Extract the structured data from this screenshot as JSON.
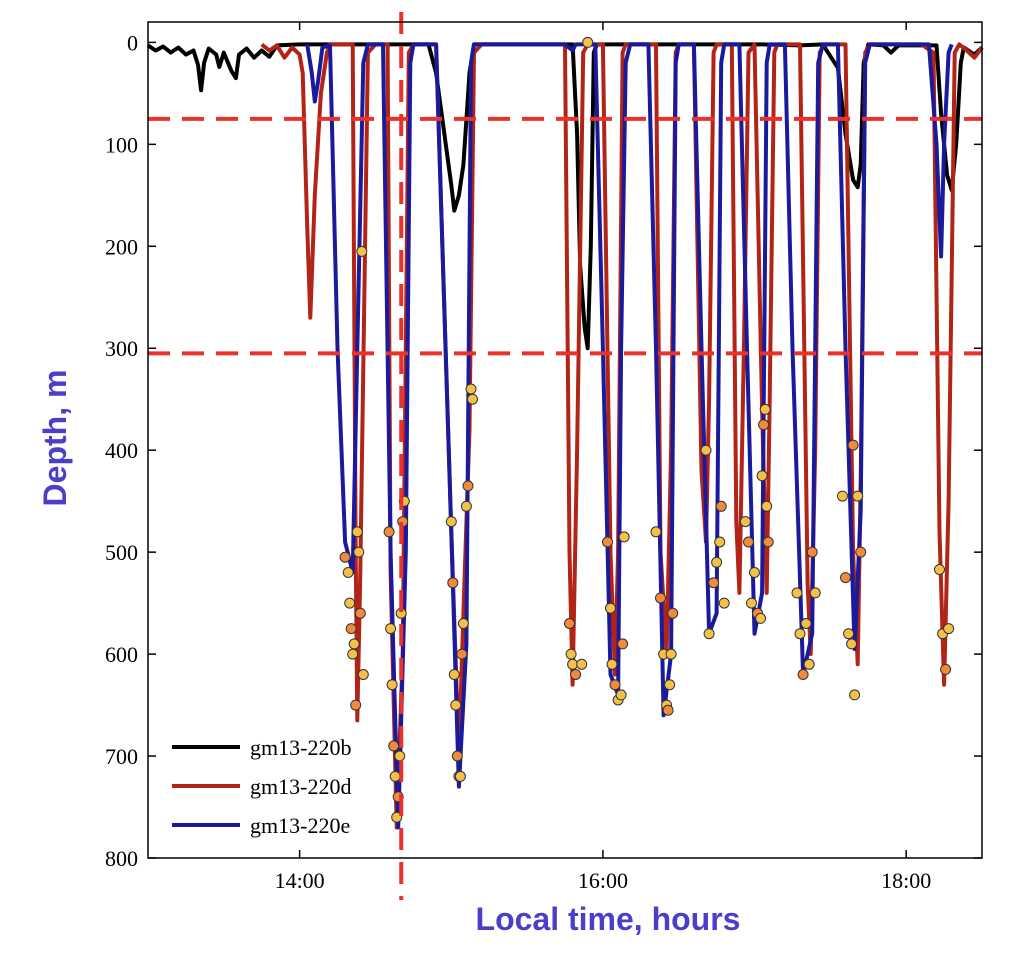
{
  "chart_data": {
    "type": "line",
    "title": "",
    "xlabel": "Local time, hours",
    "ylabel": "Depth, m",
    "xlim": [
      13.0,
      18.5
    ],
    "ylim": [
      800,
      -20
    ],
    "y_inverted": true,
    "xticks": [
      {
        "value": 14.0,
        "label": "14:00"
      },
      {
        "value": 16.0,
        "label": "16:00"
      },
      {
        "value": 18.0,
        "label": "18:00"
      }
    ],
    "yticks": [
      {
        "value": 0,
        "label": "0"
      },
      {
        "value": 100,
        "label": "100"
      },
      {
        "value": 200,
        "label": "200"
      },
      {
        "value": 300,
        "label": "300"
      },
      {
        "value": 400,
        "label": "400"
      },
      {
        "value": 500,
        "label": "500"
      },
      {
        "value": 600,
        "label": "600"
      },
      {
        "value": 700,
        "label": "700"
      },
      {
        "value": 800,
        "label": "800"
      }
    ],
    "grid": false,
    "legend_position": "bottom-left",
    "colors": {
      "axis_title": "#4a3fc9",
      "reference_line": "#e8322b",
      "marker_fill": "#f5c04a",
      "marker_fill_alt": "#f08a3c",
      "marker_stroke": "#333333"
    },
    "reference_lines": {
      "horizontal_depths": [
        75,
        305
      ],
      "vertical_time": 14.67
    },
    "series": [
      {
        "name": "gm13-220b",
        "color": "#000000",
        "points": [
          [
            13.0,
            3
          ],
          [
            13.05,
            8
          ],
          [
            13.1,
            4
          ],
          [
            13.15,
            10
          ],
          [
            13.2,
            5
          ],
          [
            13.25,
            12
          ],
          [
            13.3,
            8
          ],
          [
            13.33,
            22
          ],
          [
            13.35,
            47
          ],
          [
            13.37,
            20
          ],
          [
            13.4,
            6
          ],
          [
            13.45,
            12
          ],
          [
            13.47,
            24
          ],
          [
            13.5,
            10
          ],
          [
            13.55,
            28
          ],
          [
            13.58,
            35
          ],
          [
            13.6,
            12
          ],
          [
            13.65,
            6
          ],
          [
            13.7,
            15
          ],
          [
            13.75,
            8
          ],
          [
            13.8,
            14
          ],
          [
            13.85,
            3
          ],
          [
            14.0,
            2
          ],
          [
            14.5,
            2
          ],
          [
            14.85,
            2
          ],
          [
            14.9,
            30
          ],
          [
            15.0,
            140
          ],
          [
            15.02,
            165
          ],
          [
            15.05,
            150
          ],
          [
            15.08,
            120
          ],
          [
            15.12,
            30
          ],
          [
            15.15,
            2
          ],
          [
            15.8,
            2
          ],
          [
            15.83,
            90
          ],
          [
            15.85,
            220
          ],
          [
            15.88,
            280
          ],
          [
            15.9,
            300
          ],
          [
            15.92,
            200
          ],
          [
            15.94,
            10
          ],
          [
            15.96,
            2
          ],
          [
            17.05,
            2
          ],
          [
            17.3,
            3
          ],
          [
            17.45,
            2
          ],
          [
            17.55,
            25
          ],
          [
            17.6,
            90
          ],
          [
            17.65,
            135
          ],
          [
            17.68,
            142
          ],
          [
            17.7,
            120
          ],
          [
            17.72,
            20
          ],
          [
            17.75,
            2
          ],
          [
            17.85,
            3
          ],
          [
            17.9,
            10
          ],
          [
            17.95,
            3
          ],
          [
            18.2,
            3
          ],
          [
            18.23,
            70
          ],
          [
            18.27,
            130
          ],
          [
            18.3,
            145
          ],
          [
            18.33,
            100
          ],
          [
            18.36,
            20
          ],
          [
            18.38,
            5
          ],
          [
            18.45,
            12
          ],
          [
            18.5,
            5
          ]
        ]
      },
      {
        "name": "gm13-220d",
        "color": "#b22418",
        "points": [
          [
            13.75,
            2
          ],
          [
            13.8,
            8
          ],
          [
            13.85,
            3
          ],
          [
            13.9,
            15
          ],
          [
            13.95,
            5
          ],
          [
            14.0,
            12
          ],
          [
            14.02,
            30
          ],
          [
            14.05,
            180
          ],
          [
            14.07,
            270
          ],
          [
            14.1,
            150
          ],
          [
            14.14,
            50
          ],
          [
            14.18,
            10
          ],
          [
            14.2,
            2
          ],
          [
            14.35,
            2
          ],
          [
            14.37,
            500
          ],
          [
            14.38,
            665
          ],
          [
            14.4,
            520
          ],
          [
            14.45,
            10
          ],
          [
            14.5,
            2
          ],
          [
            14.58,
            2
          ],
          [
            14.6,
            520
          ],
          [
            14.64,
            770
          ],
          [
            14.68,
            600
          ],
          [
            14.72,
            10
          ],
          [
            14.75,
            2
          ],
          [
            14.9,
            2
          ],
          [
            15.0,
            480
          ],
          [
            15.05,
            700
          ],
          [
            15.08,
            560
          ],
          [
            15.12,
            380
          ],
          [
            15.15,
            10
          ],
          [
            15.2,
            2
          ],
          [
            15.75,
            2
          ],
          [
            15.78,
            500
          ],
          [
            15.8,
            630
          ],
          [
            15.83,
            400
          ],
          [
            15.87,
            10
          ],
          [
            15.9,
            2
          ],
          [
            16.0,
            2
          ],
          [
            16.05,
            500
          ],
          [
            16.08,
            620
          ],
          [
            16.1,
            500
          ],
          [
            16.13,
            10
          ],
          [
            16.15,
            2
          ],
          [
            16.35,
            2
          ],
          [
            16.38,
            500
          ],
          [
            16.42,
            600
          ],
          [
            16.45,
            400
          ],
          [
            16.48,
            10
          ],
          [
            16.5,
            2
          ],
          [
            16.6,
            2
          ],
          [
            16.65,
            420
          ],
          [
            16.68,
            490
          ],
          [
            16.7,
            350
          ],
          [
            16.73,
            10
          ],
          [
            16.75,
            2
          ],
          [
            16.85,
            2
          ],
          [
            16.88,
            470
          ],
          [
            16.9,
            540
          ],
          [
            16.93,
            300
          ],
          [
            16.96,
            10
          ],
          [
            17.0,
            2
          ],
          [
            17.05,
            360
          ],
          [
            17.08,
            540
          ],
          [
            17.1,
            350
          ],
          [
            17.13,
            10
          ],
          [
            17.15,
            2
          ],
          [
            17.3,
            2
          ],
          [
            17.35,
            530
          ],
          [
            17.37,
            600
          ],
          [
            17.4,
            400
          ],
          [
            17.43,
            10
          ],
          [
            17.46,
            2
          ],
          [
            17.6,
            2
          ],
          [
            17.65,
            500
          ],
          [
            17.68,
            610
          ],
          [
            17.7,
            430
          ],
          [
            17.73,
            10
          ],
          [
            17.76,
            2
          ],
          [
            18.1,
            2
          ],
          [
            18.18,
            10
          ],
          [
            18.22,
            480
          ],
          [
            18.25,
            630
          ],
          [
            18.28,
            450
          ],
          [
            18.32,
            10
          ],
          [
            18.35,
            2
          ],
          [
            18.4,
            8
          ],
          [
            18.45,
            15
          ],
          [
            18.5,
            5
          ]
        ]
      },
      {
        "name": "gm13-220e",
        "color": "#1a1a9c",
        "points": [
          [
            14.05,
            2
          ],
          [
            14.08,
            30
          ],
          [
            14.1,
            58
          ],
          [
            14.12,
            40
          ],
          [
            14.15,
            5
          ],
          [
            14.2,
            3
          ],
          [
            14.25,
            300
          ],
          [
            14.3,
            490
          ],
          [
            14.35,
            520
          ],
          [
            14.38,
            300
          ],
          [
            14.42,
            20
          ],
          [
            14.45,
            2
          ],
          [
            14.55,
            2
          ],
          [
            14.6,
            500
          ],
          [
            14.65,
            770
          ],
          [
            14.7,
            500
          ],
          [
            14.73,
            20
          ],
          [
            14.75,
            2
          ],
          [
            14.9,
            2
          ],
          [
            15.0,
            480
          ],
          [
            15.05,
            730
          ],
          [
            15.1,
            590
          ],
          [
            15.13,
            20
          ],
          [
            15.15,
            2
          ],
          [
            15.75,
            2
          ],
          [
            15.8,
            8
          ],
          [
            15.82,
            2
          ],
          [
            15.95,
            2
          ],
          [
            16.0,
            300
          ],
          [
            16.05,
            620
          ],
          [
            16.1,
            640
          ],
          [
            16.12,
            300
          ],
          [
            16.15,
            20
          ],
          [
            16.18,
            2
          ],
          [
            16.3,
            2
          ],
          [
            16.35,
            300
          ],
          [
            16.4,
            660
          ],
          [
            16.45,
            600
          ],
          [
            16.48,
            20
          ],
          [
            16.5,
            2
          ],
          [
            16.6,
            2
          ],
          [
            16.65,
            300
          ],
          [
            16.7,
            580
          ],
          [
            16.75,
            560
          ],
          [
            16.78,
            20
          ],
          [
            16.8,
            2
          ],
          [
            16.9,
            2
          ],
          [
            16.95,
            300
          ],
          [
            17.0,
            580
          ],
          [
            17.05,
            540
          ],
          [
            17.08,
            20
          ],
          [
            17.1,
            2
          ],
          [
            17.2,
            2
          ],
          [
            17.25,
            300
          ],
          [
            17.32,
            620
          ],
          [
            17.38,
            580
          ],
          [
            17.42,
            20
          ],
          [
            17.45,
            2
          ],
          [
            17.55,
            2
          ],
          [
            17.6,
            300
          ],
          [
            17.66,
            595
          ],
          [
            17.7,
            460
          ],
          [
            17.73,
            20
          ],
          [
            17.76,
            2
          ],
          [
            18.15,
            2
          ],
          [
            18.2,
            100
          ],
          [
            18.23,
            210
          ],
          [
            18.25,
            100
          ],
          [
            18.28,
            10
          ],
          [
            18.3,
            2
          ]
        ]
      }
    ],
    "markers": [
      [
        14.3,
        505
      ],
      [
        14.32,
        520
      ],
      [
        14.33,
        550
      ],
      [
        14.34,
        575
      ],
      [
        14.35,
        600
      ],
      [
        14.36,
        590
      ],
      [
        14.37,
        650
      ],
      [
        14.38,
        480
      ],
      [
        14.39,
        500
      ],
      [
        14.4,
        560
      ],
      [
        14.41,
        205
      ],
      [
        14.42,
        620
      ],
      [
        14.59,
        480
      ],
      [
        14.6,
        575
      ],
      [
        14.61,
        630
      ],
      [
        14.62,
        690
      ],
      [
        14.63,
        720
      ],
      [
        14.64,
        760
      ],
      [
        14.65,
        740
      ],
      [
        14.66,
        700
      ],
      [
        14.67,
        560
      ],
      [
        14.68,
        470
      ],
      [
        14.69,
        450
      ],
      [
        15.0,
        470
      ],
      [
        15.01,
        530
      ],
      [
        15.02,
        620
      ],
      [
        15.03,
        650
      ],
      [
        15.04,
        700
      ],
      [
        15.05,
        720
      ],
      [
        15.06,
        720
      ],
      [
        15.07,
        600
      ],
      [
        15.08,
        570
      ],
      [
        15.1,
        455
      ],
      [
        15.11,
        435
      ],
      [
        15.13,
        340
      ],
      [
        15.14,
        350
      ],
      [
        15.78,
        570
      ],
      [
        15.79,
        600
      ],
      [
        15.8,
        610
      ],
      [
        15.82,
        620
      ],
      [
        15.86,
        610
      ],
      [
        15.9,
        0
      ],
      [
        16.03,
        490
      ],
      [
        16.05,
        555
      ],
      [
        16.06,
        610
      ],
      [
        16.08,
        630
      ],
      [
        16.1,
        645
      ],
      [
        16.12,
        640
      ],
      [
        16.13,
        590
      ],
      [
        16.14,
        485
      ],
      [
        16.35,
        480
      ],
      [
        16.38,
        545
      ],
      [
        16.4,
        600
      ],
      [
        16.42,
        650
      ],
      [
        16.43,
        655
      ],
      [
        16.44,
        630
      ],
      [
        16.45,
        600
      ],
      [
        16.46,
        560
      ],
      [
        16.68,
        400
      ],
      [
        16.7,
        580
      ],
      [
        16.73,
        530
      ],
      [
        16.75,
        510
      ],
      [
        16.77,
        490
      ],
      [
        16.78,
        455
      ],
      [
        16.8,
        550
      ],
      [
        16.94,
        470
      ],
      [
        16.96,
        490
      ],
      [
        16.98,
        550
      ],
      [
        17.0,
        520
      ],
      [
        17.02,
        560
      ],
      [
        17.04,
        565
      ],
      [
        17.05,
        425
      ],
      [
        17.06,
        375
      ],
      [
        17.07,
        360
      ],
      [
        17.08,
        455
      ],
      [
        17.09,
        490
      ],
      [
        17.28,
        540
      ],
      [
        17.3,
        580
      ],
      [
        17.32,
        620
      ],
      [
        17.34,
        570
      ],
      [
        17.36,
        610
      ],
      [
        17.38,
        500
      ],
      [
        17.4,
        540
      ],
      [
        17.58,
        445
      ],
      [
        17.6,
        525
      ],
      [
        17.62,
        580
      ],
      [
        17.64,
        590
      ],
      [
        17.65,
        395
      ],
      [
        17.66,
        640
      ],
      [
        17.68,
        445
      ],
      [
        17.7,
        500
      ],
      [
        18.22,
        517
      ],
      [
        18.24,
        580
      ],
      [
        18.26,
        615
      ],
      [
        18.28,
        575
      ]
    ]
  }
}
